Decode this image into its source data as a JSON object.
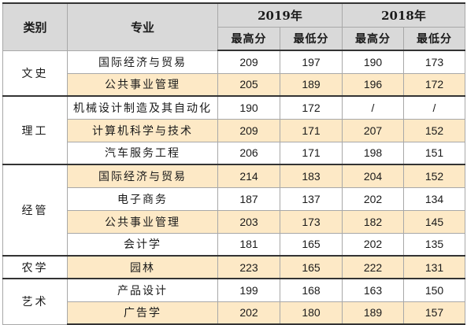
{
  "header": {
    "category": "类别",
    "major": "专业",
    "year_2019": "2019年",
    "year_2018": "2018年",
    "max_2019": "最高分",
    "min_2019": "最低分",
    "max_2018": "最高分",
    "min_2018": "最低分"
  },
  "colors": {
    "header_bg": "#d9d9d9",
    "highlight_row": "#fde9c6"
  },
  "groups": [
    {
      "category": "文史",
      "rows": [
        {
          "major": "国际经济与贸易",
          "max_2019": "209",
          "min_2019": "197",
          "max_2018": "190",
          "min_2018": "173",
          "shaded": false
        },
        {
          "major": "公共事业管理",
          "max_2019": "205",
          "min_2019": "189",
          "max_2018": "196",
          "min_2018": "172",
          "shaded": true
        }
      ]
    },
    {
      "category": "理工",
      "rows": [
        {
          "major": "机械设计制造及其自动化",
          "max_2019": "190",
          "min_2019": "172",
          "max_2018": "/",
          "min_2018": "/",
          "shaded": false
        },
        {
          "major": "计算机科学与技术",
          "max_2019": "209",
          "min_2019": "171",
          "max_2018": "207",
          "min_2018": "152",
          "shaded": true
        },
        {
          "major": "汽车服务工程",
          "max_2019": "206",
          "min_2019": "171",
          "max_2018": "198",
          "min_2018": "151",
          "shaded": false
        }
      ]
    },
    {
      "category": "经管",
      "rows": [
        {
          "major": "国际经济与贸易",
          "max_2019": "214",
          "min_2019": "183",
          "max_2018": "204",
          "min_2018": "152",
          "shaded": true
        },
        {
          "major": "电子商务",
          "max_2019": "187",
          "min_2019": "137",
          "max_2018": "202",
          "min_2018": "134",
          "shaded": false
        },
        {
          "major": "公共事业管理",
          "max_2019": "203",
          "min_2019": "173",
          "max_2018": "182",
          "min_2018": "145",
          "shaded": true
        },
        {
          "major": "会计学",
          "max_2019": "181",
          "min_2019": "165",
          "max_2018": "202",
          "min_2018": "135",
          "shaded": false
        }
      ]
    },
    {
      "category": "农学",
      "rows": [
        {
          "major": "园林",
          "max_2019": "223",
          "min_2019": "165",
          "max_2018": "222",
          "min_2018": "131",
          "shaded": true
        }
      ]
    },
    {
      "category": "艺术",
      "rows": [
        {
          "major": "产品设计",
          "max_2019": "199",
          "min_2019": "168",
          "max_2018": "163",
          "min_2018": "150",
          "shaded": false
        },
        {
          "major": "广告学",
          "max_2019": "202",
          "min_2019": "180",
          "max_2018": "189",
          "min_2018": "157",
          "shaded": true
        }
      ]
    }
  ]
}
